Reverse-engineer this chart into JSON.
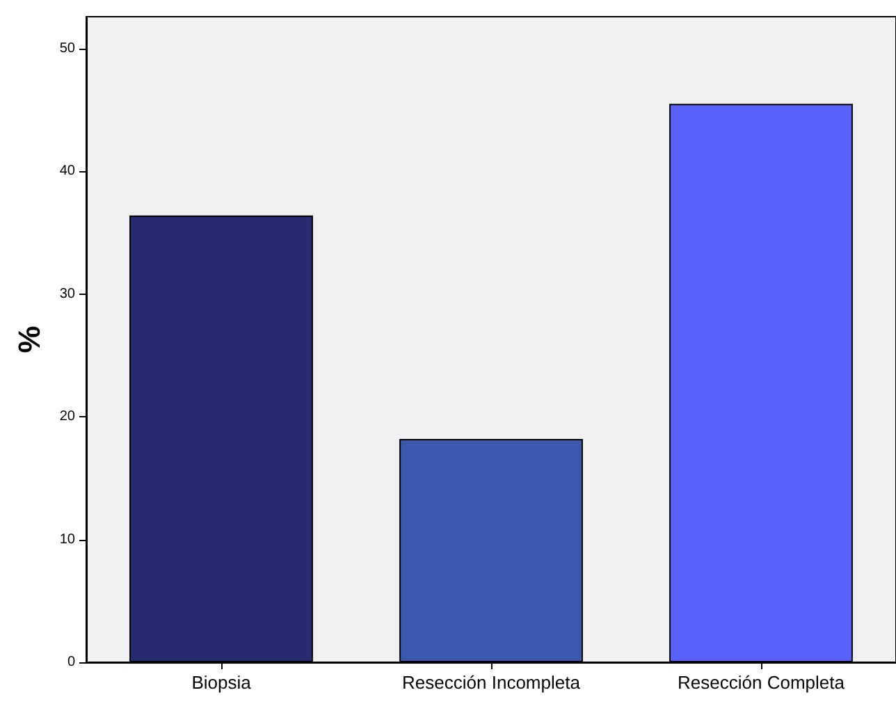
{
  "chart_data": {
    "type": "bar",
    "ylabel": "%",
    "categories": [
      "Biopsia",
      "Resección Incompleta",
      "Resección Completa"
    ],
    "values": [
      36.4,
      18.2,
      45.5
    ],
    "colors": [
      "#262a6e",
      "#3c58ad",
      "#5a62fe"
    ],
    "ylim": [
      0,
      52.6
    ],
    "yticks": [
      0,
      10,
      20,
      30,
      40,
      50
    ],
    "grid": false
  }
}
